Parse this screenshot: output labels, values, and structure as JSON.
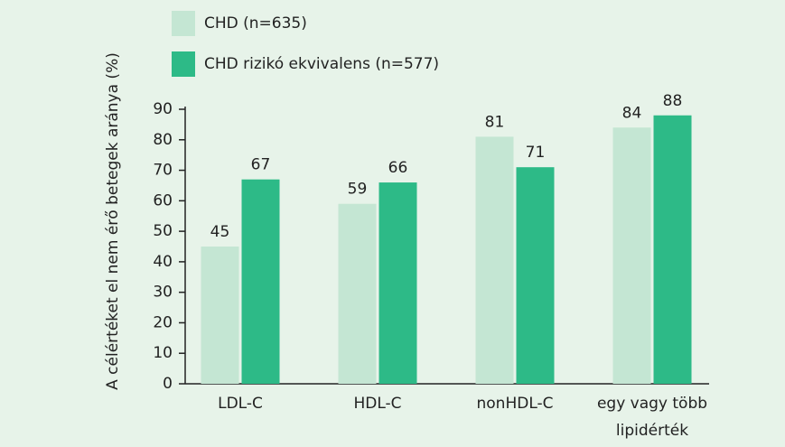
{
  "chart_data": {
    "type": "bar",
    "y_label": "A célértéket el nem érő betegek aránya (%)",
    "categories": [
      "LDL-C",
      "HDL-C",
      "nonHDL-C",
      "egy vagy több\nlipidérték"
    ],
    "series": [
      {
        "name": "CHD (n=635)",
        "color": "#c4e6d3",
        "values": [
          45,
          59,
          81,
          84
        ]
      },
      {
        "name": "CHD rizikó ekvivalens (n=577)",
        "color": "#2dba87",
        "values": [
          67,
          66,
          71,
          88
        ]
      }
    ],
    "ylim": [
      0,
      90
    ],
    "yticks": [
      0,
      10,
      20,
      30,
      40,
      50,
      60,
      70,
      80,
      90
    ]
  }
}
